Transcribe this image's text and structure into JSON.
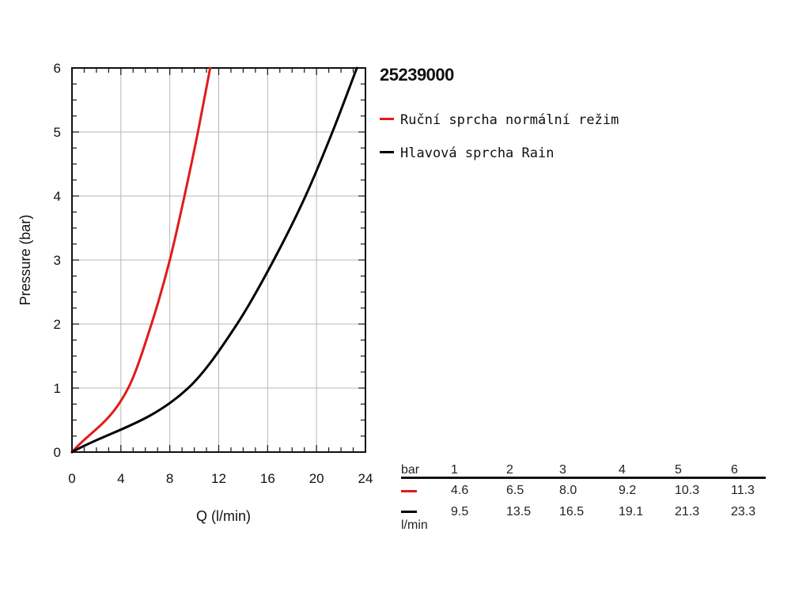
{
  "chart_data": {
    "type": "line",
    "title": "25239000",
    "xlabel": "Q (l/min)",
    "ylabel": "Pressure (bar)",
    "xlim": [
      0,
      24
    ],
    "ylim": [
      0,
      6
    ],
    "xticks": [
      "0",
      "4",
      "8",
      "12",
      "16",
      "20",
      "24"
    ],
    "yticks": [
      "0",
      "1",
      "2",
      "3",
      "4",
      "5",
      "6"
    ],
    "grid": true,
    "legend_position": "right",
    "series": [
      {
        "name": "Ruční sprcha normální režim",
        "color": "#e01b1b",
        "x": [
          0,
          4.6,
          6.5,
          8.0,
          9.2,
          10.3,
          11.3
        ],
        "y": [
          0,
          1,
          2,
          3,
          4,
          5,
          6
        ]
      },
      {
        "name": "Hlavová sprcha Rain",
        "color": "#000000",
        "x": [
          0,
          9.5,
          13.5,
          16.5,
          19.1,
          21.3,
          23.3
        ],
        "y": [
          0,
          1,
          2,
          3,
          4,
          5,
          6
        ]
      }
    ],
    "table": {
      "pressure_label": "bar",
      "flow_label": "l/min",
      "pressures": [
        "1",
        "2",
        "3",
        "4",
        "5",
        "6"
      ],
      "rows": [
        {
          "color": "#e01b1b",
          "values": [
            "4.6",
            "6.5",
            "8.0",
            "9.2",
            "10.3",
            "11.3"
          ]
        },
        {
          "color": "#000000",
          "values": [
            "9.5",
            "13.5",
            "16.5",
            "19.1",
            "21.3",
            "23.3"
          ]
        }
      ]
    }
  }
}
